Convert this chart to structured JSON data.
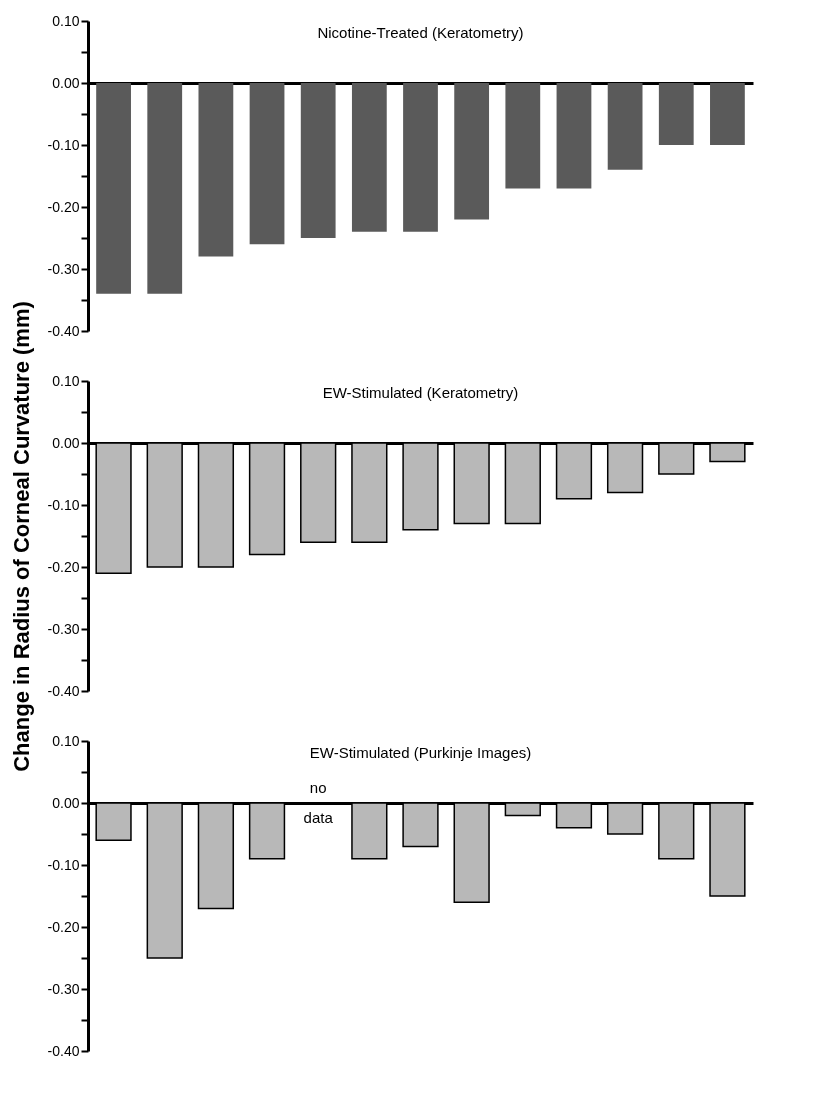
{
  "chart_data": [
    {
      "type": "bar",
      "title": "Nicotine-Treated (Keratometry)",
      "categories": [
        null,
        null,
        null,
        null,
        null,
        null,
        null,
        null,
        null,
        null,
        null,
        null,
        null
      ],
      "color": "#5a5a5a",
      "values": [
        -0.34,
        -0.34,
        -0.28,
        -0.26,
        -0.25,
        -0.24,
        -0.24,
        -0.22,
        -0.17,
        -0.17,
        -0.14,
        -0.1,
        -0.1
      ],
      "ylim": [
        -0.4,
        0.1
      ],
      "yticks": [
        {
          "value": -0.4,
          "label": "-0.40"
        },
        {
          "value": -0.35,
          "label": null
        },
        {
          "value": -0.3,
          "label": "-0.30"
        },
        {
          "value": -0.25,
          "label": null
        },
        {
          "value": -0.2,
          "label": "-0.20"
        },
        {
          "value": -0.15,
          "label": null
        },
        {
          "value": -0.1,
          "label": "-0.10"
        },
        {
          "value": -0.05,
          "label": null
        },
        {
          "value": 0,
          "label": "0.00"
        },
        {
          "value": 0.05,
          "label": null
        },
        {
          "value": 0.1,
          "label": "0.10"
        }
      ],
      "tick_labels": "y"
    },
    {
      "type": "bar",
      "title": "EW-Stimulated (Keratometry)",
      "ylabel": "Change in Radius of Corneal Curvature (mm)",
      "categories": [
        null,
        null,
        null,
        null,
        null,
        null,
        null,
        null,
        null,
        null,
        null,
        null,
        null
      ],
      "color": "#b8b8b8",
      "values": [
        -0.21,
        -0.2,
        -0.2,
        -0.18,
        -0.16,
        -0.16,
        -0.14,
        -0.13,
        -0.13,
        -0.09,
        -0.08,
        -0.05,
        -0.03
      ],
      "ylim": [
        -0.4,
        0.1
      ],
      "yticks": [
        {
          "value": -0.4,
          "label": "-0.40"
        },
        {
          "value": -0.35,
          "label": null
        },
        {
          "value": -0.3,
          "label": "-0.30"
        },
        {
          "value": -0.25,
          "label": null
        },
        {
          "value": -0.2,
          "label": "-0.20"
        },
        {
          "value": -0.15,
          "label": null
        },
        {
          "value": -0.1,
          "label": "-0.10"
        },
        {
          "value": -0.05,
          "label": null
        },
        {
          "value": 0,
          "label": "0.00"
        },
        {
          "value": 0.05,
          "label": null
        },
        {
          "value": 0.1,
          "label": "0.10"
        }
      ],
      "tick_labels": "y"
    },
    {
      "type": "bar",
      "title": "EW-Stimulated (Purkinje Images)",
      "categories": [
        null,
        null,
        null,
        null,
        null,
        null,
        null,
        null,
        null,
        null,
        null,
        null,
        null
      ],
      "color": "#b8b8b8",
      "values": [
        -0.06,
        -0.25,
        -0.17,
        -0.09,
        null,
        -0.09,
        -0.07,
        -0.16,
        -0.02,
        -0.04,
        -0.05,
        -0.09,
        -0.15
      ],
      "annotations": [
        "no data"
      ],
      "ylim": [
        -0.4,
        0.1
      ],
      "yticks": [
        {
          "value": -0.4,
          "label": "-0.40"
        },
        {
          "value": -0.35,
          "label": null
        },
        {
          "value": -0.3,
          "label": "-0.30"
        },
        {
          "value": -0.25,
          "label": null
        },
        {
          "value": -0.2,
          "label": "-0.20"
        },
        {
          "value": -0.15,
          "label": null
        },
        {
          "value": -0.1,
          "label": "-0.10"
        },
        {
          "value": -0.05,
          "label": null
        },
        {
          "value": 0,
          "label": "0.00"
        },
        {
          "value": 0.05,
          "label": null
        },
        {
          "value": 0.1,
          "label": "0.10"
        }
      ],
      "tick_labels": "y"
    }
  ]
}
